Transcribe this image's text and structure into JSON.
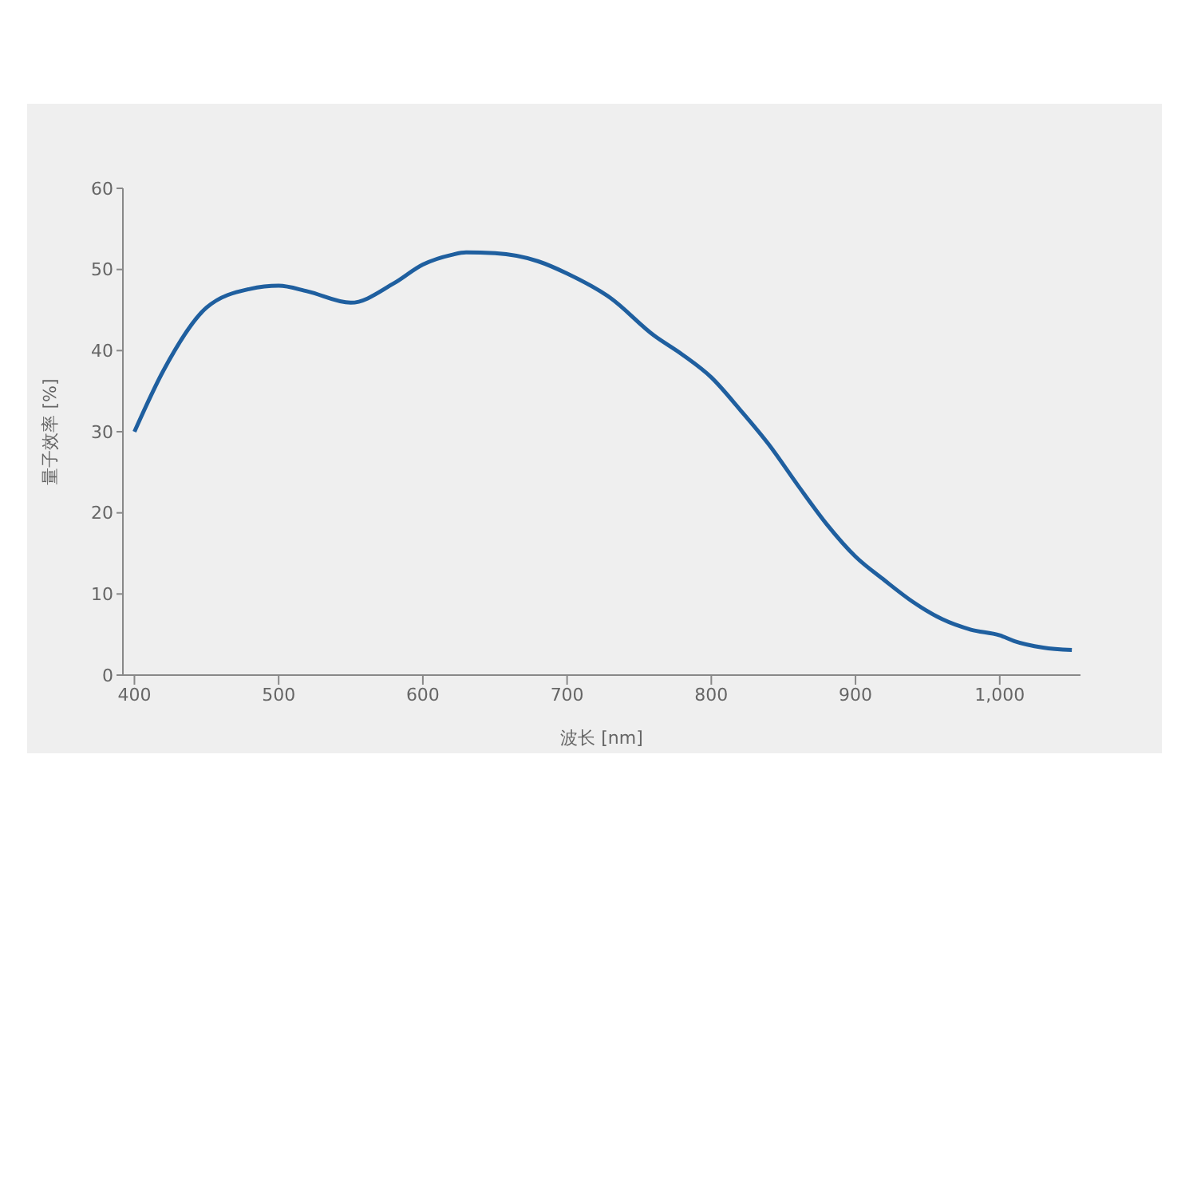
{
  "chart_data": {
    "type": "line",
    "xlabel": "波长 [nm]",
    "ylabel": "量子效率 [%]",
    "x": [
      400,
      420,
      450,
      480,
      500,
      520,
      550,
      580,
      600,
      620,
      630,
      650,
      680,
      700,
      730,
      760,
      780,
      800,
      820,
      840,
      860,
      880,
      900,
      920,
      940,
      960,
      980,
      1000,
      1010,
      1030,
      1050
    ],
    "series": [
      {
        "color": "#1f5f9f",
        "values": [
          30,
          37.5,
          45.3,
          47.6,
          48,
          47.3,
          45.9,
          48.3,
          50.6,
          51.8,
          52.1,
          52,
          51,
          49.5,
          46.5,
          41.9,
          39.5,
          36.7,
          32.7,
          28.4,
          23.4,
          18.6,
          14.6,
          11.7,
          9,
          6.9,
          5.6,
          4.9,
          4.2,
          3.4,
          3.1
        ]
      }
    ],
    "xlim": [
      392,
      1056
    ],
    "xticks": [
      400,
      500,
      600,
      700,
      800,
      900,
      {
        "value": 1000,
        "label": "1,000"
      }
    ],
    "ylim": [
      0,
      60
    ],
    "yticks": [
      0,
      10,
      20,
      30,
      40,
      50,
      60
    ],
    "grid": false,
    "legend": false,
    "marker": "none",
    "line_style": "solid"
  }
}
